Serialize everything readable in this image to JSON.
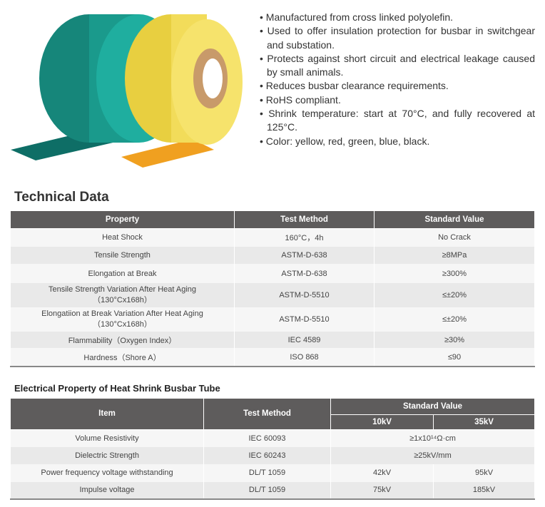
{
  "features": [
    "Manufactured from cross linked polyolefin.",
    "Used to offer insulation protection for busbar in switchgear and substation.",
    "Protects against short circuit and electrical leakage caused by small animals.",
    "Reduces busbar clearance requirements.",
    "RoHS compliant.",
    "Shrink temperature: start at 70°C, and fully recovered at 125°C.",
    "Color: yellow, red, green, blue, black."
  ],
  "product_colors": {
    "green": "#1a9a8c",
    "yellow": "#f2dc5a"
  },
  "technical": {
    "title": "Technical Data",
    "headers": [
      "Property",
      "Test Method",
      "Standard Value"
    ],
    "rows": [
      [
        "Heat Shock",
        "",
        "160°C，4h",
        "No Crack"
      ],
      [
        "Tensile Strength",
        "",
        "ASTM-D-638",
        "≥8MPa"
      ],
      [
        "Elongation at Break",
        "",
        "ASTM-D-638",
        "≥300%"
      ],
      [
        "Tensile Strength Variation After Heat Aging",
        "（130°Cx168h）",
        "ASTM-D-5510",
        "≤±20%"
      ],
      [
        "Elongatiion at Break Variation After Heat Aging",
        "（130°Cx168h）",
        "ASTM-D-5510",
        "≤±20%"
      ],
      [
        "Flammability（Oxygen Index）",
        "",
        "IEC 4589",
        "≥30%"
      ],
      [
        "Hardness（Shore A）",
        "",
        "ISO 868",
        "≤90"
      ]
    ]
  },
  "electrical": {
    "title": "Electrical Property of Heat Shrink Busbar Tube",
    "headers": {
      "item": "Item",
      "method": "Test Method",
      "standard": "Standard Value",
      "v10": "10kV",
      "v35": "35kV"
    },
    "rows": [
      {
        "item": "Volume Resistivity",
        "method": "IEC 60093",
        "value": "≥1x10¹⁴Ω·cm"
      },
      {
        "item": "Dielectric Strength",
        "method": "IEC 60243",
        "value": "≥25kV/mm"
      },
      {
        "item": "Power frequency voltage withstanding",
        "method": "DL/T 1059",
        "v10": "42kV",
        "v35": "95kV"
      },
      {
        "item": "Impulse voltage",
        "method": "DL/T 1059",
        "v10": "75kV",
        "v35": "185kV"
      }
    ]
  }
}
